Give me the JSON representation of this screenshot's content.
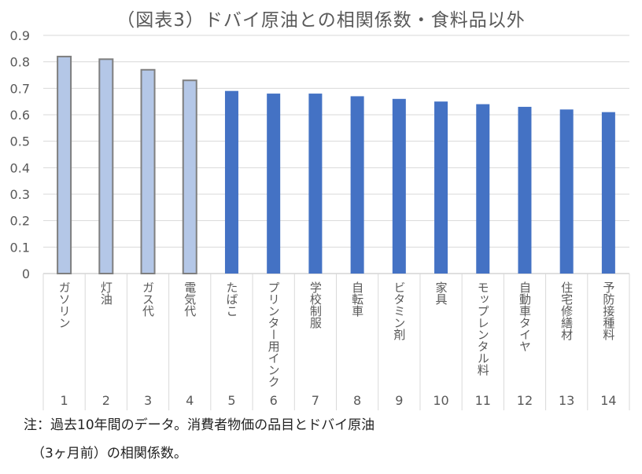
{
  "chart_data": {
    "type": "bar",
    "title": "（図表3）ドバイ原油との相関係数・食料品以外",
    "categories": [
      "ガソリン",
      "灯油",
      "ガス代",
      "電気代",
      "たばこ",
      "プリンター用インク",
      "学校制服",
      "自転車",
      "ビタミン剤",
      "家具",
      "モップレンタル料",
      "自動車タイヤ",
      "住宅修繕材",
      "予防接種料"
    ],
    "category_numbers": [
      "1",
      "2",
      "3",
      "4",
      "5",
      "6",
      "7",
      "8",
      "9",
      "10",
      "11",
      "12",
      "13",
      "14"
    ],
    "values": [
      0.82,
      0.81,
      0.77,
      0.73,
      0.69,
      0.68,
      0.68,
      0.67,
      0.66,
      0.65,
      0.64,
      0.63,
      0.62,
      0.61
    ],
    "highlighted": [
      true,
      true,
      true,
      true,
      false,
      false,
      false,
      false,
      false,
      false,
      false,
      false,
      false,
      false
    ],
    "ylim": [
      0,
      0.9
    ],
    "yticks": [
      "0",
      "0.1",
      "0.2",
      "0.3",
      "0.4",
      "0.5",
      "0.6",
      "0.7",
      "0.8",
      "0.9"
    ],
    "grid": true,
    "colors": {
      "highlight": "#b4c7e7",
      "highlight_border": "#7f7f7f",
      "normal": "#4472c4"
    }
  },
  "notes": {
    "line1": "注：過去10年間のデータ。消費者物価の品目とドバイ原油",
    "line2": "（3ヶ月前）の相関係数。"
  }
}
